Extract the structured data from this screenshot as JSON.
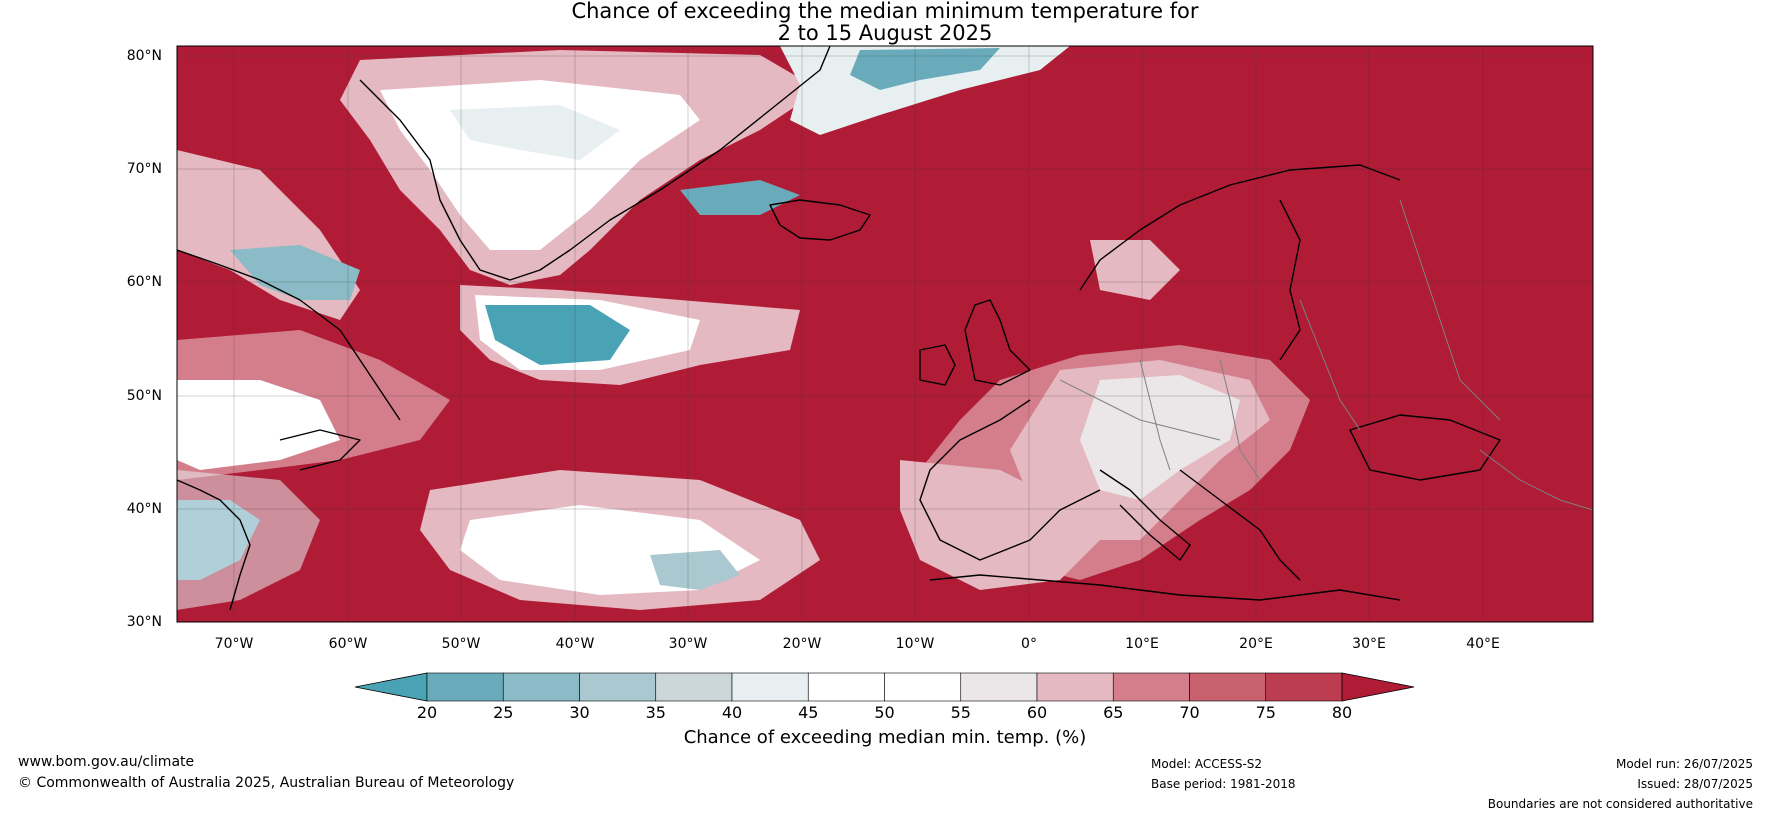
{
  "title_line1": "Chance of exceeding the median minimum temperature for",
  "title_line2": "2 to 15 August 2025",
  "map": {
    "lat_labels": [
      "80°N",
      "70°N",
      "60°N",
      "50°N",
      "40°N",
      "30°N"
    ],
    "lon_labels": [
      "70°W",
      "60°W",
      "50°W",
      "40°W",
      "30°W",
      "20°W",
      "10°W",
      "0°",
      "10°E",
      "20°E",
      "30°E",
      "40°E"
    ],
    "background_color": "#b01c36",
    "coast_color": "#000000",
    "border_color": "#808080"
  },
  "colorbar": {
    "ticks": [
      "20",
      "25",
      "30",
      "35",
      "40",
      "45",
      "50",
      "55",
      "60",
      "65",
      "70",
      "75",
      "80"
    ],
    "label": "Chance of exceeding median min. temp. (%)",
    "colors": [
      "#4aa3b4",
      "#6aabbb",
      "#8bbbc6",
      "#aac8cf",
      "#cbd7d9",
      "#e8eff0",
      "#ffffff",
      "#ffffff",
      "#ebe6e7",
      "#e4b9c1",
      "#d47e8c",
      "#c8606e",
      "#bd3d50",
      "#b01c36"
    ]
  },
  "footer": {
    "website": "www.bom.gov.au/climate",
    "copyright": "© Commonwealth of Australia 2025, Australian Bureau of Meteorology",
    "model": "Model: ACCESS-S2",
    "base_period": "Base period: 1981-2018",
    "model_run": "Model run: 26/07/2025",
    "issued": "Issued: 28/07/2025",
    "disclaimer": "Boundaries are not considered authoritative"
  }
}
